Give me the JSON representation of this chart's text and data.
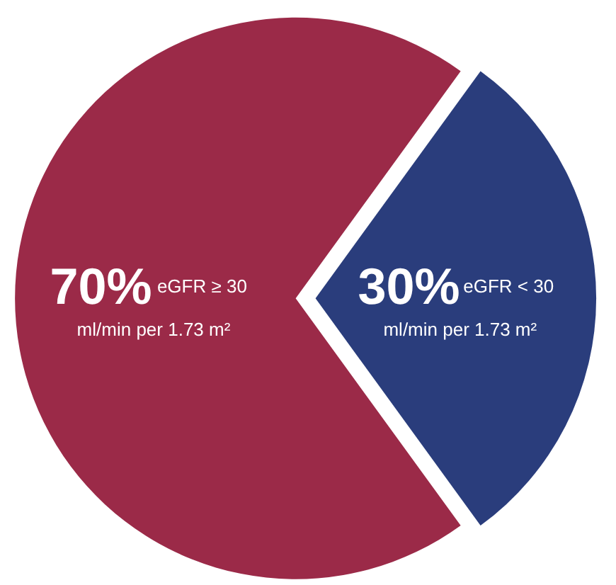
{
  "chart_data": {
    "type": "pie",
    "categories": [
      "eGFR ≥ 30 ml/min per 1.73 m²",
      "eGFR < 30 ml/min per 1.73 m²"
    ],
    "values": [
      70,
      30
    ],
    "colors": [
      "#9b2a48",
      "#2a3d7c"
    ],
    "value_labels": [
      "70%",
      "30%"
    ]
  }
}
